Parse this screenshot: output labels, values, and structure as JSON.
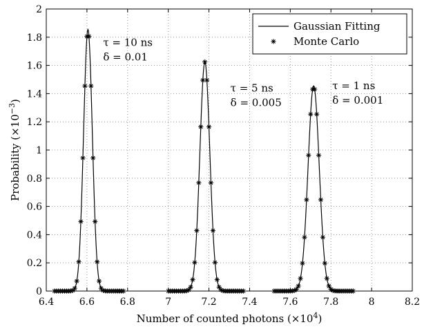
{
  "chart_data": {
    "type": "line",
    "xlabel": "Number of counted photons (×10",
    "xlabel_exp": "4",
    "xlabel_close": ")",
    "ylabel": "Probability (×10",
    "ylabel_exp": "−3",
    "ylabel_close": ")",
    "xlim": [
      6.4,
      8.2
    ],
    "ylim": [
      0,
      2
    ],
    "xticks": [
      "6.4",
      "6.6",
      "6.8",
      "7",
      "7.2",
      "7.4",
      "7.6",
      "7.8",
      "8",
      "8.2"
    ],
    "yticks": [
      "0",
      "0.2",
      "0.4",
      "0.6",
      "0.8",
      "1",
      "1.2",
      "1.4",
      "1.6",
      "1.8",
      "2"
    ],
    "grid": true,
    "legend_position": "top-right",
    "legend": [
      {
        "label": "Gaussian Fitting",
        "style": "line"
      },
      {
        "label": "Monte Carlo",
        "style": "asterisk"
      }
    ],
    "groups": [
      {
        "tau_label": "τ = 10 ns",
        "delta_label": "δ = 0.01",
        "mean": 6.605,
        "std": 0.0215,
        "peak": 1.855,
        "x_range": [
          6.44,
          6.78
        ]
      },
      {
        "tau_label": "τ = 5 ns",
        "delta_label": "δ = 0.005",
        "mean": 7.18,
        "std": 0.0245,
        "peak": 1.625,
        "x_range": [
          7.0,
          7.37
        ]
      },
      {
        "tau_label": "τ = 1 ns",
        "delta_label": "δ = 0.001",
        "mean": 7.715,
        "std": 0.0275,
        "peak": 1.455,
        "x_range": [
          7.52,
          7.91
        ]
      }
    ],
    "monte_carlo_step": 0.01
  }
}
